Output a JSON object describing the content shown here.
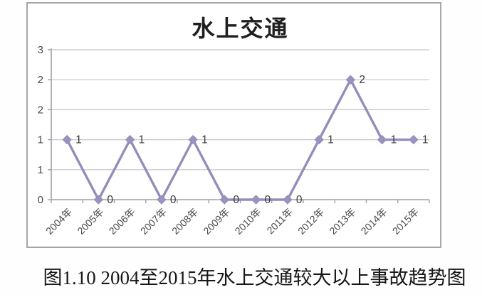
{
  "figure": {
    "caption": "图1.10 2004至2015年水上交通较大以上事故趋势图"
  },
  "chart_data": {
    "type": "line",
    "title": "水上交通",
    "categories": [
      "2004年",
      "2005年",
      "2006年",
      "2007年",
      "2008年",
      "2009年",
      "2010年",
      "2011年",
      "2012年",
      "2013年",
      "2014年",
      "2015年"
    ],
    "series": [
      {
        "name": "水上交通",
        "values": [
          1,
          0,
          1,
          0,
          1,
          0,
          0,
          0,
          1,
          2,
          1,
          1
        ]
      }
    ],
    "data_labels": [
      "1",
      "0",
      "1",
      "0",
      "1",
      "0",
      "0",
      "0",
      "1",
      "2",
      "1",
      "1"
    ],
    "xlabel": "",
    "ylabel": "",
    "ylim": [
      0,
      2.5
    ],
    "ytick_step": 0.5,
    "ytick_labels_top_to_bottom": [
      "3",
      "2",
      "2",
      "1",
      "1",
      "0"
    ],
    "grid": "horizontal",
    "legend_position": "none",
    "marker_shape": "diamond",
    "colors": {
      "line": "#948cba",
      "marker": "#9a93be",
      "gridline": "#c4c4ca",
      "axis": "#a0a0a5",
      "tick_label": "#4a4a4a",
      "data_label": "#3a3a3a",
      "title": "#1f1f1f",
      "frame_border": "#a6a6a6"
    }
  }
}
